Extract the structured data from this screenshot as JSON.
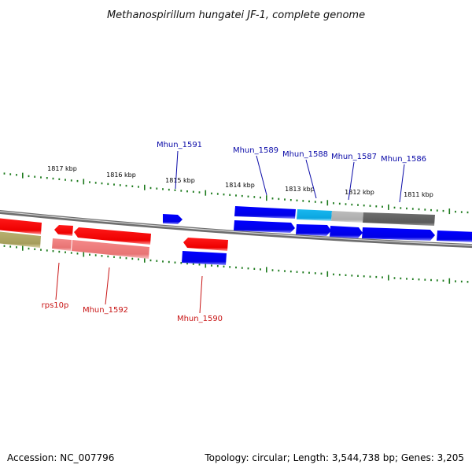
{
  "title": "Methanospirillum hungatei JF-1, complete genome",
  "accession": "Accession: NC_007796",
  "topology": "Topology: circular; Length: 3,544,738 bp; Genes: 3,205",
  "scale_labels": [
    "1817 kbp",
    "1816 kbp",
    "1815 kbp",
    "1814 kbp",
    "1813 kbp",
    "1812 kbp",
    "1811 kbp"
  ],
  "gene_labels": [
    {
      "name": "Mhun_1591",
      "strand": "forward"
    },
    {
      "name": "Mhun_1589",
      "strand": "forward"
    },
    {
      "name": "Mhun_1588",
      "strand": "forward"
    },
    {
      "name": "Mhun_1587",
      "strand": "forward"
    },
    {
      "name": "Mhun_1586",
      "strand": "forward"
    },
    {
      "name": "rps10p",
      "strand": "reverse"
    },
    {
      "name": "Mhun_1592",
      "strand": "reverse"
    },
    {
      "name": "Mhun_1590",
      "strand": "reverse"
    }
  ],
  "colors": {
    "forward_label": "#0a0aa8",
    "reverse_label": "#c81414",
    "tick": "#1c7a1c",
    "backbone": "#7a7a7a"
  }
}
